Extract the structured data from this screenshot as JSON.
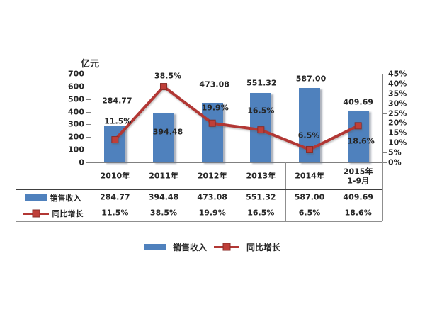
{
  "chart_data": {
    "type": "bar",
    "subtype": "combo-bar-line",
    "unit_label": "亿元",
    "categories": [
      "2010年",
      "2011年",
      "2012年",
      "2013年",
      "2014年",
      "2015年\n1-9月"
    ],
    "series": [
      {
        "name": "销售收入",
        "type": "bar",
        "axis": "left",
        "values": [
          284.77,
          394.48,
          473.08,
          551.32,
          587.0,
          409.69
        ],
        "labels": [
          "284.77",
          "394.48",
          "473.08",
          "551.32",
          "587.00",
          "409.69"
        ]
      },
      {
        "name": "同比增长",
        "type": "line",
        "axis": "right",
        "values": [
          11.5,
          38.5,
          19.9,
          16.5,
          6.5,
          18.6
        ],
        "labels": [
          "11.5%",
          "38.5%",
          "19.9%",
          "16.5%",
          "6.5%",
          "18.6%"
        ]
      }
    ],
    "left_axis": {
      "min": 0,
      "max": 700,
      "step": 100,
      "tick_labels": [
        "700",
        "600",
        "500",
        "400",
        "300",
        "200",
        "100",
        "0"
      ]
    },
    "right_axis": {
      "min": 0,
      "max": 45,
      "step": 5,
      "tick_labels": [
        "45%",
        "40%",
        "35%",
        "30%",
        "25%",
        "20%",
        "15%",
        "10%",
        "5%",
        "0%"
      ]
    },
    "grid": false,
    "legend": {
      "position": "bottom",
      "items": [
        "销售收入",
        "同比增长"
      ]
    },
    "data_table": {
      "shown": true,
      "row_headers": [
        "销售收入",
        "同比增长"
      ],
      "columns": [
        "2010年",
        "2011年",
        "2012年",
        "2013年",
        "2014年",
        "2015年\n1-9月"
      ],
      "rows": [
        [
          "284.77",
          "394.48",
          "473.08",
          "551.32",
          "587.00",
          "409.69"
        ],
        [
          "11.5%",
          "38.5%",
          "19.9%",
          "16.5%",
          "6.5%",
          "18.6%"
        ]
      ]
    }
  },
  "colors": {
    "bar": "#4f81bd",
    "line": "#b23734",
    "marker_fill": "#bf3f39",
    "marker_edge": "#8a2c28",
    "axis": "#808080",
    "table_line": "#8f8f8f",
    "table_line_dark": "#404040",
    "text": "#262626",
    "background": "#ffffff"
  }
}
